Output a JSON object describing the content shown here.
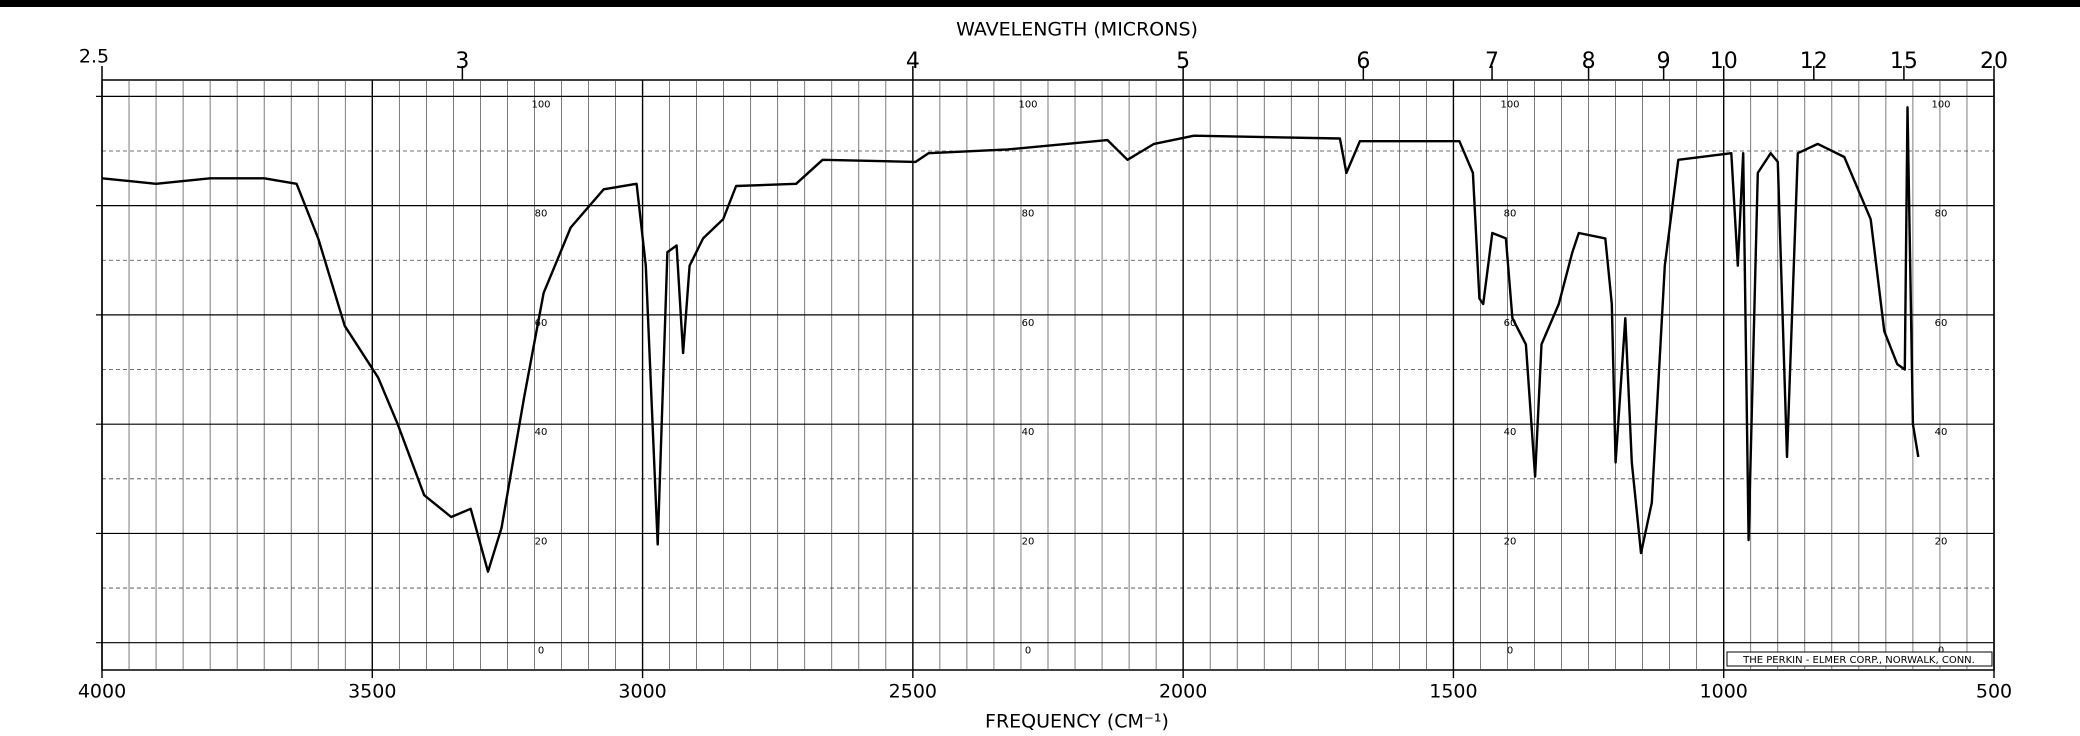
{
  "chart_data": {
    "type": "line",
    "title": "WAVELENGTH (MICRONS)",
    "x_label": "FREQUENCY (CM⁻¹)",
    "footer": "THE PERKIN - ELMER CORP., NORWALK, CONN.",
    "xlim": [
      4000,
      500
    ],
    "xticks": [
      4000,
      3500,
      3000,
      2500,
      2000,
      1500,
      1000,
      500
    ],
    "x_minor_ticks": [
      3950,
      3900,
      3850,
      3800,
      3750,
      3700,
      3650,
      3600,
      3550,
      3450,
      3400,
      3350,
      3300,
      3250,
      3200,
      3150,
      3100,
      3050,
      2950,
      2900,
      2850,
      2800,
      2750,
      2700,
      2650,
      2600,
      2550,
      2450,
      2400,
      2350,
      2300,
      2250,
      2200,
      2150,
      2100,
      2050,
      1950,
      1900,
      1850,
      1800,
      1750,
      1700,
      1650,
      1600,
      1550,
      1450,
      1400,
      1350,
      1300,
      1250,
      1200,
      1150,
      1100,
      1050,
      950,
      900,
      850,
      800,
      750,
      700,
      650,
      600,
      550
    ],
    "ylim": [
      -5,
      103
    ],
    "yticks": [
      0,
      20,
      40,
      60,
      80,
      100
    ],
    "y_minor_ticks": [
      10,
      30,
      50,
      70,
      90
    ],
    "wavelength_ticks": [
      2.5,
      3,
      4,
      5,
      6,
      7,
      8,
      9,
      10,
      12,
      15,
      20
    ],
    "grid": true,
    "x": [
      4000,
      3900,
      3800,
      3700,
      3640,
      3600,
      3551,
      3489,
      3453,
      3404,
      3354,
      3318,
      3286,
      3261,
      3219,
      3183,
      3133,
      3072,
      3011,
      2994,
      2972,
      2954,
      2937,
      2925,
      2913,
      2888,
      2851,
      2827,
      2716,
      2667,
      2495,
      2471,
      2324,
      2140,
      2103,
      2054,
      1980,
      1710,
      1698,
      1673,
      1489,
      1464,
      1452,
      1445,
      1428,
      1403,
      1391,
      1366,
      1349,
      1337,
      1305,
      1280,
      1268,
      1219,
      1207,
      1200,
      1182,
      1170,
      1153,
      1133,
      1109,
      1084,
      986,
      974,
      964,
      954,
      937,
      913,
      900,
      883,
      863,
      826,
      777,
      728,
      703,
      679,
      665,
      660,
      650,
      640
    ],
    "series": [
      {
        "color": "#000000",
        "values": [
          85,
          84,
          85,
          85,
          84,
          74,
          58,
          48.5,
          40,
          27,
          23,
          24.5,
          13,
          21,
          45,
          64,
          76,
          83,
          84,
          69,
          18,
          71.5,
          72.7,
          53,
          69,
          74,
          77.5,
          83.6,
          84,
          88.4,
          88,
          89.6,
          90.3,
          92,
          88.4,
          91.3,
          92.8,
          92.3,
          86,
          91.8,
          91.8,
          86,
          63,
          62,
          75,
          74,
          59.4,
          54.6,
          30.4,
          54.6,
          62,
          71.5,
          75,
          74,
          62,
          33,
          59.4,
          33,
          16.4,
          25.6,
          69,
          88.4,
          89.6,
          69,
          89.6,
          18.8,
          86,
          89.6,
          88,
          34,
          89.6,
          91.3,
          88.9,
          77.5,
          57,
          51,
          50,
          98,
          40,
          34
        ]
      }
    ]
  }
}
